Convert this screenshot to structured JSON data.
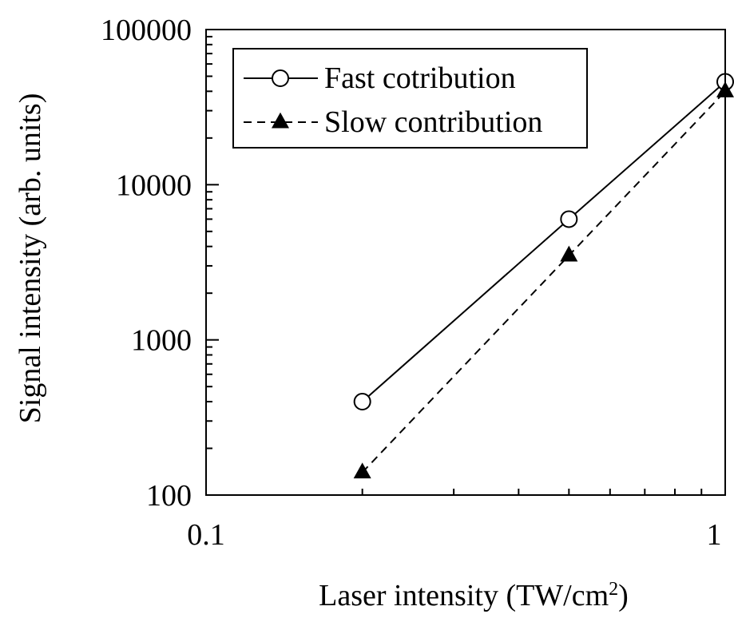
{
  "chart_data": {
    "type": "line",
    "xlabel": "Laser intensity (TW/cm",
    "xlabel_sup": "2",
    "xlabel_end": ")",
    "ylabel": "Signal intensity (arb. units)",
    "xscale": "log",
    "yscale": "log",
    "xlim": [
      0.1,
      1
    ],
    "ylim": [
      100,
      100000
    ],
    "xticks": [
      {
        "value": 0.1,
        "label": "0.1"
      },
      {
        "value": 1,
        "label": "1"
      }
    ],
    "yticks": [
      {
        "value": 100,
        "label": "100"
      },
      {
        "value": 1000,
        "label": "1000"
      },
      {
        "value": 10000,
        "label": "10000"
      },
      {
        "value": 100000,
        "label": "100000"
      }
    ],
    "grid": false,
    "legend_position": "top-left",
    "series": [
      {
        "name": "Fast cotribution",
        "marker": "open-circle",
        "line": "solid",
        "x": [
          0.2,
          0.5,
          1.0
        ],
        "y": [
          400,
          6000,
          46000
        ]
      },
      {
        "name": "Slow contribution",
        "marker": "filled-triangle",
        "line": "dashed",
        "x": [
          0.2,
          0.5,
          1.0
        ],
        "y": [
          140,
          3500,
          40000
        ]
      }
    ],
    "colors": {
      "line": "#000000",
      "background": "#ffffff"
    }
  }
}
